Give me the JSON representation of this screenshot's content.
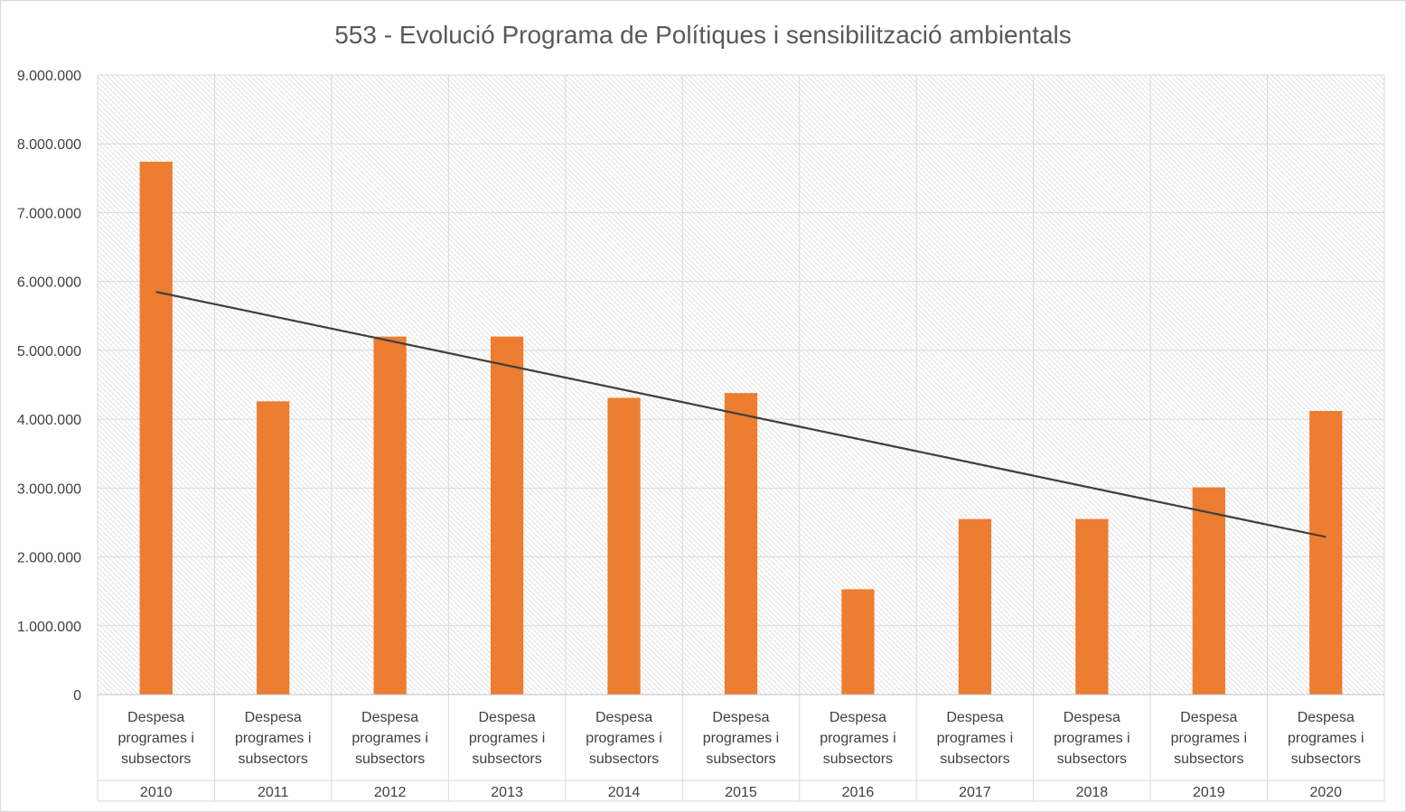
{
  "chart_data": {
    "type": "bar",
    "title": "553 - Evolució Programa de Polítiques i sensibilització ambientals",
    "categories": [
      "2010",
      "2011",
      "2012",
      "2013",
      "2014",
      "2015",
      "2016",
      "2017",
      "2018",
      "2019",
      "2020"
    ],
    "category_group_label": [
      "Despesa",
      "programes i",
      "subsectors"
    ],
    "series": [
      {
        "name": "Despesa programes i subsectors",
        "color": "#ED7D31",
        "values": [
          7740000,
          4260000,
          5200000,
          5200000,
          4310000,
          4380000,
          1530000,
          2550000,
          2550000,
          3010000,
          4120000
        ]
      }
    ],
    "trendline": {
      "type": "linear",
      "color": "#404040",
      "start_value": 5850000,
      "end_value": 2290000
    },
    "ylim": [
      0,
      9000000
    ],
    "ytick_step": 1000000,
    "ytick_labels": [
      "0",
      "1.000.000",
      "2.000.000",
      "3.000.000",
      "4.000.000",
      "5.000.000",
      "6.000.000",
      "7.000.000",
      "8.000.000",
      "9.000.000"
    ],
    "grid": true,
    "xlabel": "",
    "ylabel": ""
  }
}
